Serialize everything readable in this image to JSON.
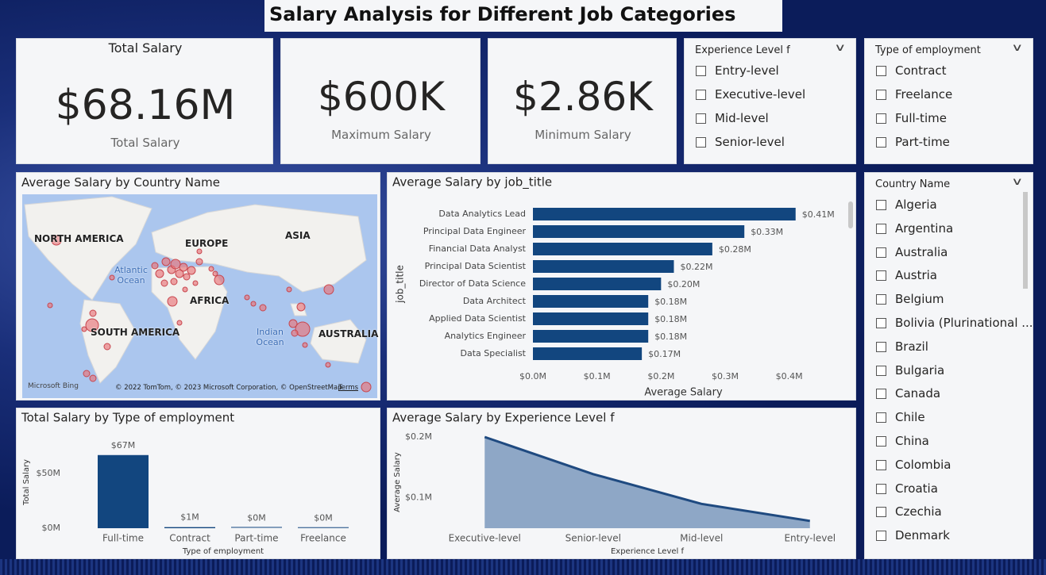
{
  "title": "Salary Analysis for Different Job Categories",
  "kpis": [
    {
      "header": "Total Salary",
      "value": "$68.16M",
      "label": "Total Salary"
    },
    {
      "value": "$600K",
      "label": "Maximum Salary"
    },
    {
      "value": "$2.86K",
      "label": "Minimum Salary"
    }
  ],
  "slicers": [
    {
      "title": "Experience Level f",
      "items": [
        "Entry-level",
        "Executive-level",
        "Mid-level",
        "Senior-level"
      ]
    },
    {
      "title": "Type of employment",
      "items": [
        "Contract",
        "Freelance",
        "Full-time",
        "Part-time"
      ]
    },
    {
      "title": "Country Name",
      "items": [
        "Algeria",
        "Argentina",
        "Australia",
        "Austria",
        "Belgium",
        "Bolivia (Plurinational ...",
        "Brazil",
        "Bulgaria",
        "Canada",
        "Chile",
        "China",
        "Colombia",
        "Croatia",
        "Czechia",
        "Denmark"
      ]
    }
  ],
  "map": {
    "title": "Average Salary by Country Name",
    "labels": [
      "NORTH AMERICA",
      "EUROPE",
      "ASIA",
      "Atlantic Ocean",
      "AFRICA",
      "SOUTH AMERICA",
      "Indian Ocean",
      "AUSTRALIA"
    ],
    "bing": "Microsoft Bing",
    "credits": "© 2022 TomTom, © 2023 Microsoft Corporation, © OpenStreetMap",
    "terms": "Terms"
  },
  "chart_data": [
    {
      "type": "hbar",
      "title": "Average Salary by job_title",
      "categories": [
        "Data Analytics Lead",
        "Principal Data Engineer",
        "Financial Data Analyst",
        "Principal Data Scientist",
        "Director of Data Science",
        "Data Architect",
        "Applied Data Scientist",
        "Analytics Engineer",
        "Data Specialist"
      ],
      "values": [
        0.41,
        0.33,
        0.28,
        0.22,
        0.2,
        0.18,
        0.18,
        0.18,
        0.17
      ],
      "value_labels": [
        "$0.41M",
        "$0.33M",
        "$0.28M",
        "$0.22M",
        "$0.20M",
        "$0.18M",
        "$0.18M",
        "$0.18M",
        "$0.17M"
      ],
      "color": "#12467f",
      "xlim": [
        0,
        0.45
      ],
      "xticks": [
        {
          "value": 0,
          "label": "$0.0M"
        },
        {
          "value": 0.1,
          "label": "$0.1M"
        },
        {
          "value": 0.2,
          "label": "$0.2M"
        },
        {
          "value": 0.3,
          "label": "$0.3M"
        },
        {
          "value": 0.4,
          "label": "$0.4M"
        }
      ],
      "xlabel": "Average Salary",
      "ylabel": "job_title",
      "grid": false
    },
    {
      "type": "bar",
      "title": "Total Salary by Type of employment",
      "categories": [
        "Full-time",
        "Contract",
        "Part-time",
        "Freelance"
      ],
      "values": [
        67,
        1,
        0.4,
        0.2
      ],
      "value_labels": [
        "$67M",
        "$1M",
        "$0M",
        "$0M"
      ],
      "color": "#12467f",
      "ylim": [
        0,
        85
      ],
      "yticks": [
        {
          "value": 0,
          "label": "$0M"
        },
        {
          "value": 50,
          "label": "$50M"
        }
      ],
      "xlabel": "Type of employment",
      "ylabel": "Total Salary",
      "grid": false
    },
    {
      "type": "area",
      "title": "Average Salary by Experience Level f",
      "categories": [
        "Executive-level",
        "Senior-level",
        "Mid-level",
        "Entry-level"
      ],
      "values": [
        0.2,
        0.139,
        0.09,
        0.062
      ],
      "color": "#1f4a80",
      "fill": "#8ea7c6",
      "ylim": [
        0.05,
        0.2
      ],
      "yticks": [
        {
          "value": 0.1,
          "label": "$0.1M"
        },
        {
          "value": 0.2,
          "label": "$0.2M"
        }
      ],
      "xlabel": "Experience Level f",
      "ylabel": "Average Salary",
      "grid": false
    }
  ]
}
